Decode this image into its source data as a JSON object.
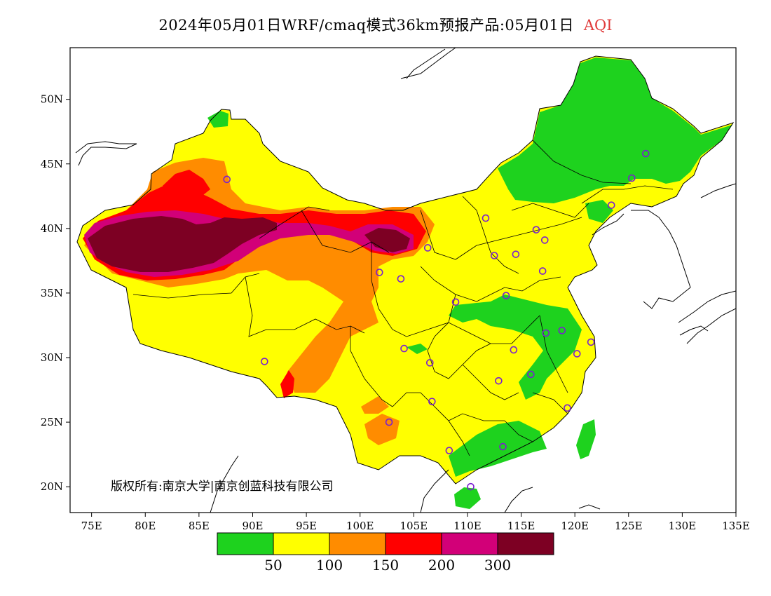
{
  "title": {
    "main": "2024年05月01日WRF/cmaq模式36km预报产品:05月01日",
    "variable": "AQI"
  },
  "copyright": "版权所有:南京大学|南京创蓝科技有限公司",
  "axes": {
    "lon_labels": [
      "75E",
      "80E",
      "85E",
      "90E",
      "95E",
      "100E",
      "105E",
      "110E",
      "115E",
      "120E",
      "125E",
      "130E",
      "135E"
    ],
    "lat_labels": [
      "20N",
      "25N",
      "30N",
      "35N",
      "40N",
      "45N",
      "50N"
    ]
  },
  "legend": {
    "colors": [
      "#1ed21e",
      "#ffff00",
      "#ff8c00",
      "#ff0000",
      "#d20078",
      "#7d0023"
    ],
    "thresholds": [
      "50",
      "100",
      "150",
      "200",
      "300"
    ]
  },
  "stations": [
    {
      "lon": 87.6,
      "lat": 43.8
    },
    {
      "lon": 91.1,
      "lat": 29.7
    },
    {
      "lon": 101.8,
      "lat": 36.6
    },
    {
      "lon": 103.8,
      "lat": 36.1
    },
    {
      "lon": 106.3,
      "lat": 38.5
    },
    {
      "lon": 111.7,
      "lat": 40.8
    },
    {
      "lon": 112.5,
      "lat": 37.9
    },
    {
      "lon": 114.5,
      "lat": 38.0
    },
    {
      "lon": 116.4,
      "lat": 39.9
    },
    {
      "lon": 117.2,
      "lat": 39.1
    },
    {
      "lon": 117.0,
      "lat": 36.7
    },
    {
      "lon": 113.6,
      "lat": 34.8
    },
    {
      "lon": 108.9,
      "lat": 34.3
    },
    {
      "lon": 104.1,
      "lat": 30.7
    },
    {
      "lon": 106.5,
      "lat": 29.6
    },
    {
      "lon": 106.7,
      "lat": 26.6
    },
    {
      "lon": 102.7,
      "lat": 25.0
    },
    {
      "lon": 108.3,
      "lat": 22.8
    },
    {
      "lon": 113.3,
      "lat": 23.1
    },
    {
      "lon": 110.3,
      "lat": 20.0
    },
    {
      "lon": 112.9,
      "lat": 28.2
    },
    {
      "lon": 114.3,
      "lat": 30.6
    },
    {
      "lon": 115.9,
      "lat": 28.7
    },
    {
      "lon": 117.3,
      "lat": 31.9
    },
    {
      "lon": 118.8,
      "lat": 32.1
    },
    {
      "lon": 120.2,
      "lat": 30.3
    },
    {
      "lon": 121.5,
      "lat": 31.2
    },
    {
      "lon": 119.3,
      "lat": 26.1
    },
    {
      "lon": 123.4,
      "lat": 41.8
    },
    {
      "lon": 125.3,
      "lat": 43.9
    },
    {
      "lon": 126.6,
      "lat": 45.8
    }
  ]
}
